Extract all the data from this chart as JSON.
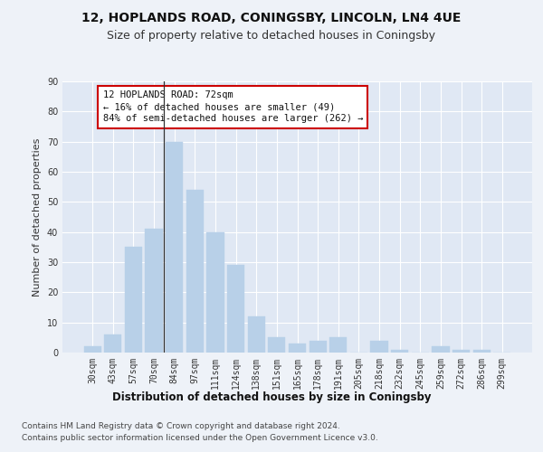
{
  "title1": "12, HOPLANDS ROAD, CONINGSBY, LINCOLN, LN4 4UE",
  "title2": "Size of property relative to detached houses in Coningsby",
  "xlabel": "Distribution of detached houses by size in Coningsby",
  "ylabel": "Number of detached properties",
  "categories": [
    "30sqm",
    "43sqm",
    "57sqm",
    "70sqm",
    "84sqm",
    "97sqm",
    "111sqm",
    "124sqm",
    "138sqm",
    "151sqm",
    "165sqm",
    "178sqm",
    "191sqm",
    "205sqm",
    "218sqm",
    "232sqm",
    "245sqm",
    "259sqm",
    "272sqm",
    "286sqm",
    "299sqm"
  ],
  "values": [
    2,
    6,
    35,
    41,
    70,
    54,
    40,
    29,
    12,
    5,
    3,
    4,
    5,
    0,
    4,
    1,
    0,
    2,
    1,
    1,
    0
  ],
  "bar_color": "#b8d0e8",
  "bar_edge_color": "#b8d0e8",
  "vline_x": 3.5,
  "annotation_title": "12 HOPLANDS ROAD: 72sqm",
  "annotation_line1": "← 16% of detached houses are smaller (49)",
  "annotation_line2": "84% of semi-detached houses are larger (262) →",
  "annotation_box_color": "#ffffff",
  "annotation_box_edge": "#cc0000",
  "footnote1": "Contains HM Land Registry data © Crown copyright and database right 2024.",
  "footnote2": "Contains public sector information licensed under the Open Government Licence v3.0.",
  "ylim": [
    0,
    90
  ],
  "yticks": [
    0,
    10,
    20,
    30,
    40,
    50,
    60,
    70,
    80,
    90
  ],
  "bg_color": "#eef2f8",
  "plot_bg_color": "#e0e8f4",
  "grid_color": "#ffffff",
  "title1_fontsize": 10,
  "title2_fontsize": 9,
  "xlabel_fontsize": 8.5,
  "ylabel_fontsize": 8,
  "tick_fontsize": 7,
  "footnote_fontsize": 6.5,
  "annotation_fontsize": 7.5
}
